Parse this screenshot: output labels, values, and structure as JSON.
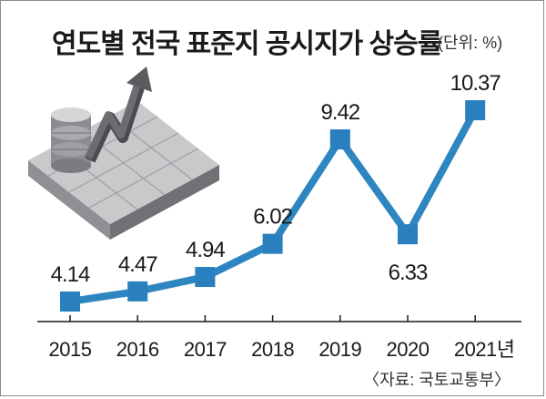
{
  "header": {
    "title": "연도별 전국 표준지 공시지가 상승률",
    "unit": "(단위: %)"
  },
  "source": "〈자료: 국토교통부〉",
  "colors": {
    "line": "#2e86c1",
    "marker": "#2a7fbf",
    "axis": "#1a1a1a",
    "text": "#1a1a1a"
  },
  "chart_data": {
    "type": "line",
    "title": "연도별 전국 표준지 공시지가 상승률",
    "ylabel": "",
    "xlabel": "",
    "categories": [
      "2015",
      "2016",
      "2017",
      "2018",
      "2019",
      "2020",
      "2021년"
    ],
    "series": [
      {
        "values": [
          4.14,
          4.47,
          4.94,
          6.02,
          9.42,
          6.33,
          10.37
        ],
        "labels": [
          "4.14",
          "4.47",
          "4.94",
          "6.02",
          "9.42",
          "6.33",
          "10.37"
        ]
      }
    ],
    "label_position": [
      "above",
      "above",
      "above",
      "above",
      "above",
      "below",
      "above"
    ],
    "ylim": [
      2.5,
      11
    ],
    "grid": false,
    "legend": "none",
    "decoration": "stack-of-coins-on-tiles-with-rising-arrow-icon"
  }
}
